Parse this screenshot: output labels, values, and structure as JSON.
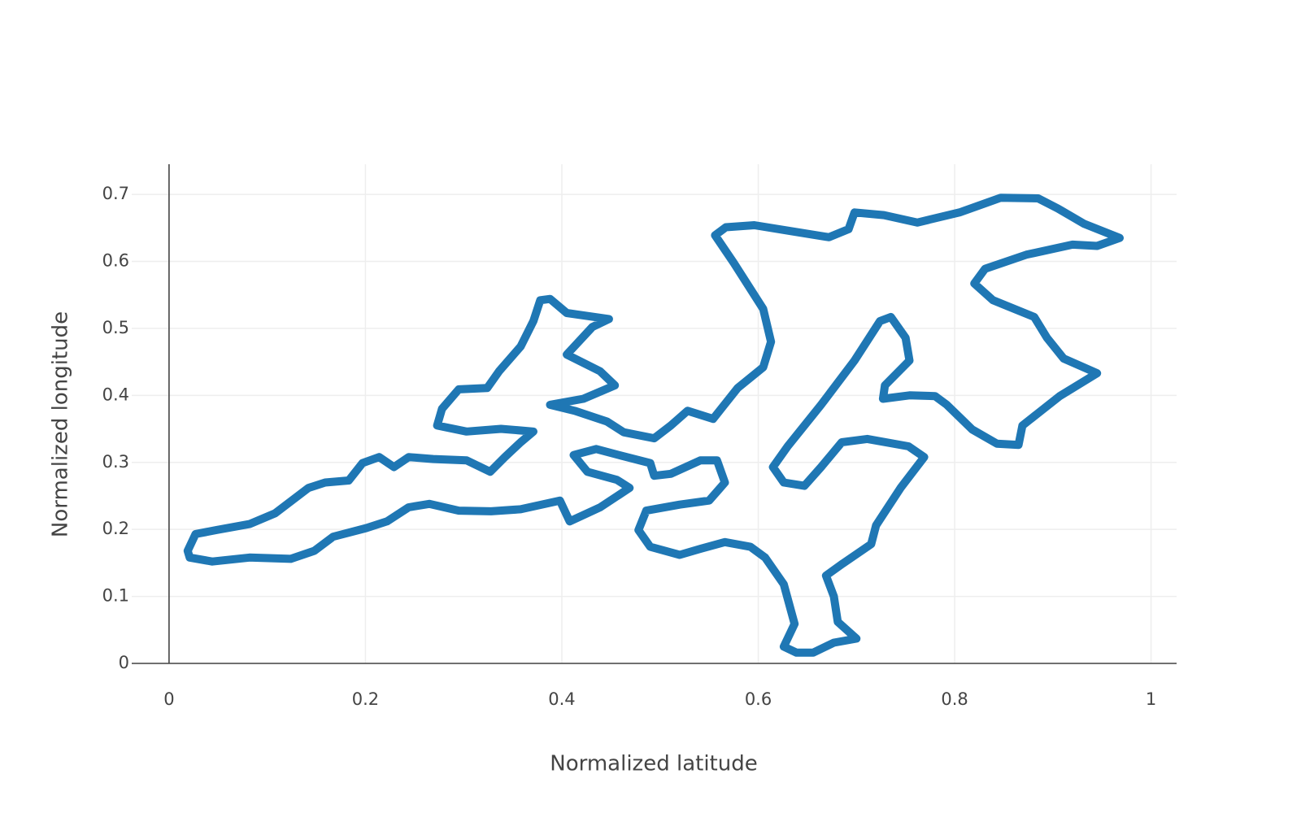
{
  "chart_data": {
    "type": "line",
    "xlabel": "Normalized latitude",
    "ylabel": "Normalized longitude",
    "color": "#1f77b4",
    "grid": true,
    "xlim": [
      -0.038,
      1.026
    ],
    "ylim": [
      0,
      0.745
    ],
    "xticks": [
      0,
      0.2,
      0.4,
      0.6,
      0.8,
      1
    ],
    "yticks": [
      0,
      0.1,
      0.2,
      0.3,
      0.4,
      0.5,
      0.6,
      0.7
    ],
    "x": [
      0.027,
      0.048,
      0.082,
      0.108,
      0.142,
      0.159,
      0.183,
      0.197,
      0.214,
      0.229,
      0.244,
      0.269,
      0.303,
      0.327,
      0.342,
      0.358,
      0.371,
      0.338,
      0.303,
      0.273,
      0.278,
      0.295,
      0.324,
      0.336,
      0.358,
      0.371,
      0.378,
      0.388,
      0.405,
      0.448,
      0.431,
      0.405,
      0.439,
      0.454,
      0.422,
      0.388,
      0.413,
      0.446,
      0.463,
      0.494,
      0.511,
      0.528,
      0.554,
      0.579,
      0.605,
      0.613,
      0.605,
      0.575,
      0.556,
      0.567,
      0.596,
      0.634,
      0.672,
      0.692,
      0.698,
      0.728,
      0.762,
      0.805,
      0.847,
      0.885,
      0.905,
      0.932,
      0.968,
      0.945,
      0.92,
      0.873,
      0.831,
      0.82,
      0.839,
      0.881,
      0.894,
      0.911,
      0.945,
      0.907,
      0.869,
      0.865,
      0.843,
      0.818,
      0.792,
      0.78,
      0.754,
      0.727,
      0.729,
      0.754,
      0.75,
      0.735,
      0.724,
      0.698,
      0.664,
      0.63,
      0.615,
      0.626,
      0.647,
      0.664,
      0.685,
      0.711,
      0.753,
      0.769,
      0.745,
      0.72,
      0.715,
      0.686,
      0.669,
      0.677,
      0.681,
      0.7,
      0.677,
      0.656,
      0.639,
      0.626,
      0.637,
      0.626,
      0.607,
      0.592,
      0.566,
      0.541,
      0.52,
      0.49,
      0.478,
      0.486,
      0.52,
      0.55,
      0.566,
      0.558,
      0.541,
      0.511,
      0.494,
      0.49,
      0.458,
      0.435,
      0.412,
      0.426,
      0.456,
      0.469,
      0.439,
      0.408,
      0.398,
      0.358,
      0.328,
      0.295,
      0.265,
      0.244,
      0.222,
      0.201,
      0.167,
      0.148,
      0.124,
      0.082,
      0.044,
      0.021,
      0.019,
      0.027
    ],
    "values": [
      0.193,
      0.199,
      0.208,
      0.224,
      0.262,
      0.27,
      0.273,
      0.299,
      0.308,
      0.293,
      0.308,
      0.305,
      0.303,
      0.286,
      0.308,
      0.33,
      0.346,
      0.35,
      0.346,
      0.355,
      0.38,
      0.409,
      0.411,
      0.436,
      0.473,
      0.511,
      0.542,
      0.544,
      0.523,
      0.514,
      0.502,
      0.461,
      0.436,
      0.415,
      0.395,
      0.386,
      0.377,
      0.361,
      0.345,
      0.336,
      0.355,
      0.377,
      0.365,
      0.411,
      0.442,
      0.48,
      0.529,
      0.598,
      0.639,
      0.651,
      0.654,
      0.645,
      0.636,
      0.648,
      0.673,
      0.669,
      0.658,
      0.673,
      0.695,
      0.694,
      0.679,
      0.656,
      0.635,
      0.623,
      0.625,
      0.61,
      0.589,
      0.567,
      0.542,
      0.517,
      0.486,
      0.455,
      0.433,
      0.399,
      0.355,
      0.326,
      0.328,
      0.349,
      0.386,
      0.399,
      0.4,
      0.395,
      0.415,
      0.452,
      0.486,
      0.517,
      0.511,
      0.452,
      0.386,
      0.324,
      0.293,
      0.27,
      0.265,
      0.293,
      0.33,
      0.335,
      0.324,
      0.308,
      0.262,
      0.206,
      0.178,
      0.149,
      0.131,
      0.1,
      0.062,
      0.037,
      0.031,
      0.016,
      0.016,
      0.025,
      0.059,
      0.118,
      0.158,
      0.174,
      0.181,
      0.171,
      0.162,
      0.174,
      0.199,
      0.228,
      0.237,
      0.243,
      0.27,
      0.303,
      0.303,
      0.283,
      0.28,
      0.299,
      0.311,
      0.32,
      0.311,
      0.286,
      0.274,
      0.262,
      0.233,
      0.212,
      0.243,
      0.23,
      0.227,
      0.228,
      0.238,
      0.233,
      0.212,
      0.202,
      0.189,
      0.168,
      0.156,
      0.158,
      0.152,
      0.158,
      0.168,
      0.193
    ]
  }
}
